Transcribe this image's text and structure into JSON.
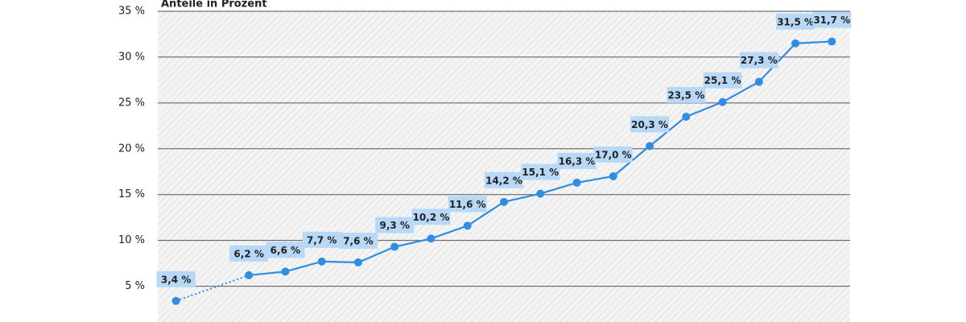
{
  "chart_data": {
    "type": "line",
    "title": "Anteile in Prozent",
    "categories": [
      null,
      null,
      null,
      null,
      null,
      null,
      null,
      null,
      null,
      null,
      null,
      null,
      null,
      null,
      null,
      null,
      null,
      null,
      null
    ],
    "series": [
      {
        "color": "#2f8de4",
        "values": [
          3.4,
          null,
          6.2,
          6.6,
          7.7,
          7.6,
          9.3,
          10.2,
          11.6,
          14.2,
          15.1,
          16.3,
          17.0,
          20.3,
          23.5,
          25.1,
          27.3,
          31.5,
          31.7
        ],
        "value_labels": [
          "3,4 %",
          null,
          "6,2 %",
          "6,6 %",
          "7,7 %",
          "7,6 %",
          "9,3 %",
          "10,2 %",
          "11,6 %",
          "14,2 %",
          "15,1 %",
          "16,3 %",
          "17,0 %",
          "20,3 %",
          "23,5 %",
          "25,1 %",
          "27,3 %",
          "31,5 %",
          "31,7 %"
        ]
      }
    ],
    "ylim": [
      1.1,
      35
    ],
    "yticks": [
      {
        "value": 5,
        "label": "5 %"
      },
      {
        "value": 10,
        "label": "10 %"
      },
      {
        "value": 15,
        "label": "15 %"
      },
      {
        "value": 20,
        "label": "20 %"
      },
      {
        "value": 25,
        "label": "25 %"
      },
      {
        "value": 30,
        "label": "30 %"
      },
      {
        "value": 35,
        "label": "35 %"
      }
    ],
    "grid": true
  }
}
